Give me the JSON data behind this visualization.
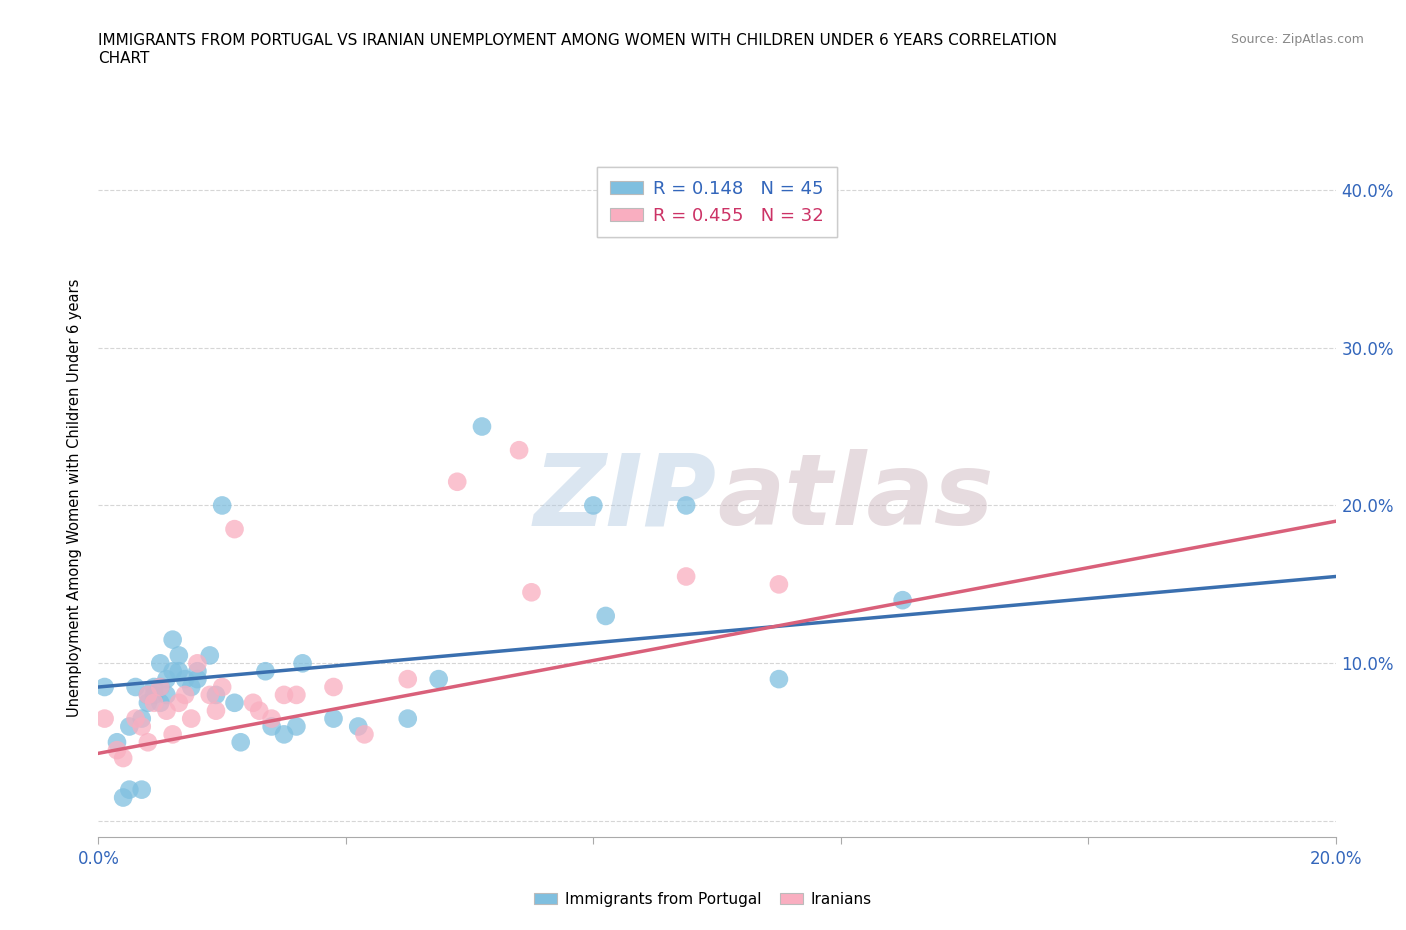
{
  "title_line1": "IMMIGRANTS FROM PORTUGAL VS IRANIAN UNEMPLOYMENT AMONG WOMEN WITH CHILDREN UNDER 6 YEARS CORRELATION",
  "title_line2": "CHART",
  "source": "Source: ZipAtlas.com",
  "ylabel": "Unemployment Among Women with Children Under 6 years",
  "xlim": [
    0.0,
    0.2
  ],
  "ylim": [
    -0.01,
    0.42
  ],
  "xticks": [
    0.0,
    0.04,
    0.08,
    0.12,
    0.16,
    0.2
  ],
  "xtick_labels": [
    "0.0%",
    "",
    "",
    "",
    "",
    "20.0%"
  ],
  "yticks": [
    0.0,
    0.1,
    0.2,
    0.3,
    0.4
  ],
  "ytick_labels_right": [
    "",
    "10.0%",
    "20.0%",
    "30.0%",
    "40.0%"
  ],
  "blue_color": "#7fbfdf",
  "pink_color": "#f9aec0",
  "blue_line_color": "#3a6faf",
  "pink_line_color": "#d9607a",
  "watermark_zip": "ZIP",
  "watermark_atlas": "atlas",
  "legend_label1": "Immigrants from Portugal",
  "legend_label2": "Iranians",
  "legend_R1": "0.148",
  "legend_N1": "45",
  "legend_R2": "0.455",
  "legend_N2": "32",
  "blue_points_x": [
    0.001,
    0.003,
    0.004,
    0.005,
    0.005,
    0.006,
    0.007,
    0.007,
    0.008,
    0.008,
    0.009,
    0.009,
    0.01,
    0.01,
    0.01,
    0.011,
    0.011,
    0.012,
    0.012,
    0.013,
    0.013,
    0.014,
    0.015,
    0.016,
    0.016,
    0.018,
    0.019,
    0.02,
    0.022,
    0.023,
    0.027,
    0.028,
    0.03,
    0.032,
    0.033,
    0.038,
    0.042,
    0.05,
    0.055,
    0.062,
    0.08,
    0.082,
    0.095,
    0.11,
    0.13
  ],
  "blue_points_y": [
    0.085,
    0.05,
    0.015,
    0.06,
    0.02,
    0.085,
    0.065,
    0.02,
    0.075,
    0.08,
    0.085,
    0.08,
    0.085,
    0.1,
    0.075,
    0.09,
    0.08,
    0.095,
    0.115,
    0.095,
    0.105,
    0.09,
    0.085,
    0.09,
    0.095,
    0.105,
    0.08,
    0.2,
    0.075,
    0.05,
    0.095,
    0.06,
    0.055,
    0.06,
    0.1,
    0.065,
    0.06,
    0.065,
    0.09,
    0.25,
    0.2,
    0.13,
    0.2,
    0.09,
    0.14
  ],
  "pink_points_x": [
    0.001,
    0.003,
    0.004,
    0.006,
    0.007,
    0.008,
    0.008,
    0.009,
    0.01,
    0.011,
    0.012,
    0.013,
    0.014,
    0.015,
    0.016,
    0.018,
    0.019,
    0.02,
    0.022,
    0.025,
    0.026,
    0.028,
    0.03,
    0.032,
    0.038,
    0.043,
    0.05,
    0.058,
    0.068,
    0.07,
    0.095,
    0.11
  ],
  "pink_points_y": [
    0.065,
    0.045,
    0.04,
    0.065,
    0.06,
    0.05,
    0.08,
    0.075,
    0.085,
    0.07,
    0.055,
    0.075,
    0.08,
    0.065,
    0.1,
    0.08,
    0.07,
    0.085,
    0.185,
    0.075,
    0.07,
    0.065,
    0.08,
    0.08,
    0.085,
    0.055,
    0.09,
    0.215,
    0.235,
    0.145,
    0.155,
    0.15
  ],
  "blue_trend_x": [
    0.0,
    0.2
  ],
  "blue_trend_y": [
    0.085,
    0.155
  ],
  "pink_trend_x": [
    0.0,
    0.2
  ],
  "pink_trend_y": [
    0.043,
    0.19
  ]
}
